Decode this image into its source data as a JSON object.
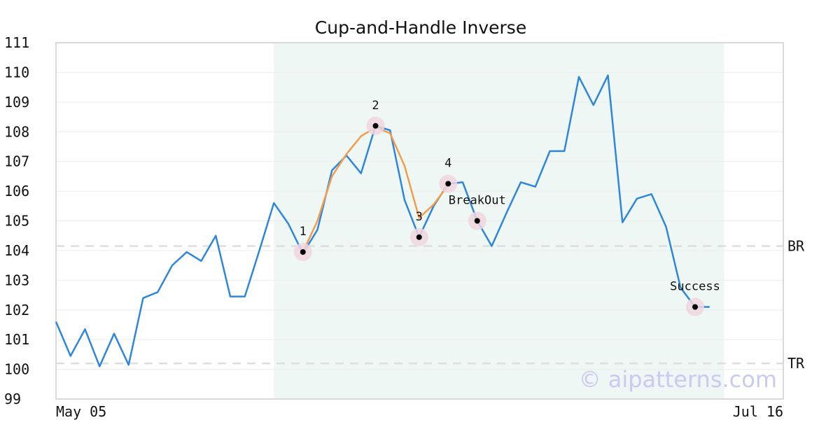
{
  "chart_data": {
    "type": "line",
    "title": "Cup-and-Handle Inverse",
    "xlabel": "",
    "ylabel": "",
    "ylim": [
      99,
      111
    ],
    "yticks": [
      99,
      100,
      101,
      102,
      103,
      104,
      105,
      106,
      107,
      108,
      109,
      110,
      111
    ],
    "x_tick_labels": [
      {
        "index": 0,
        "label": "May 05"
      },
      {
        "index": 51,
        "label": "Jul 16"
      }
    ],
    "series": [
      {
        "values": [
          101.6,
          100.45,
          101.35,
          100.1,
          101.2,
          100.15,
          102.4,
          102.6,
          103.5,
          103.95,
          103.65,
          104.5,
          102.45,
          102.45,
          104.0,
          105.6,
          104.9,
          103.9,
          104.7,
          106.7,
          107.2,
          106.6,
          108.2,
          108.05,
          105.7,
          104.45,
          105.5,
          106.25,
          106.3,
          105.0,
          104.15,
          105.25,
          106.3,
          106.15,
          107.35,
          107.35,
          109.85,
          108.9,
          109.9,
          104.95,
          105.75,
          105.9,
          104.8,
          102.75,
          102.1,
          102.1
        ],
        "color": "#2e86de"
      }
    ],
    "pattern_line": {
      "color": "#f39c4b",
      "points": [
        [
          17,
          103.95
        ],
        [
          18,
          105.0
        ],
        [
          19,
          106.5
        ],
        [
          20,
          107.25
        ],
        [
          21,
          107.85
        ],
        [
          22,
          108.15
        ],
        [
          23,
          107.95
        ],
        [
          24,
          106.85
        ],
        [
          25,
          105.1
        ],
        [
          26,
          105.55
        ],
        [
          27,
          106.2
        ]
      ]
    },
    "pattern_region": {
      "x_start": 15,
      "x_end": 46,
      "color": "#eef7f3"
    },
    "key_points": [
      {
        "label": "1",
        "x": 17,
        "y": 103.95
      },
      {
        "label": "2",
        "x": 22,
        "y": 108.2
      },
      {
        "label": "3",
        "x": 25,
        "y": 104.45
      },
      {
        "label": "4",
        "x": 27,
        "y": 106.25
      },
      {
        "label": "BreakOut",
        "x": 29,
        "y": 105.0
      },
      {
        "label": "Success",
        "x": 44,
        "y": 102.1
      }
    ],
    "levels": [
      {
        "label": "BR",
        "value": 104.15
      },
      {
        "label": "TR",
        "value": 100.2
      }
    ],
    "grid": true,
    "watermark": "© aipatterns.com"
  }
}
